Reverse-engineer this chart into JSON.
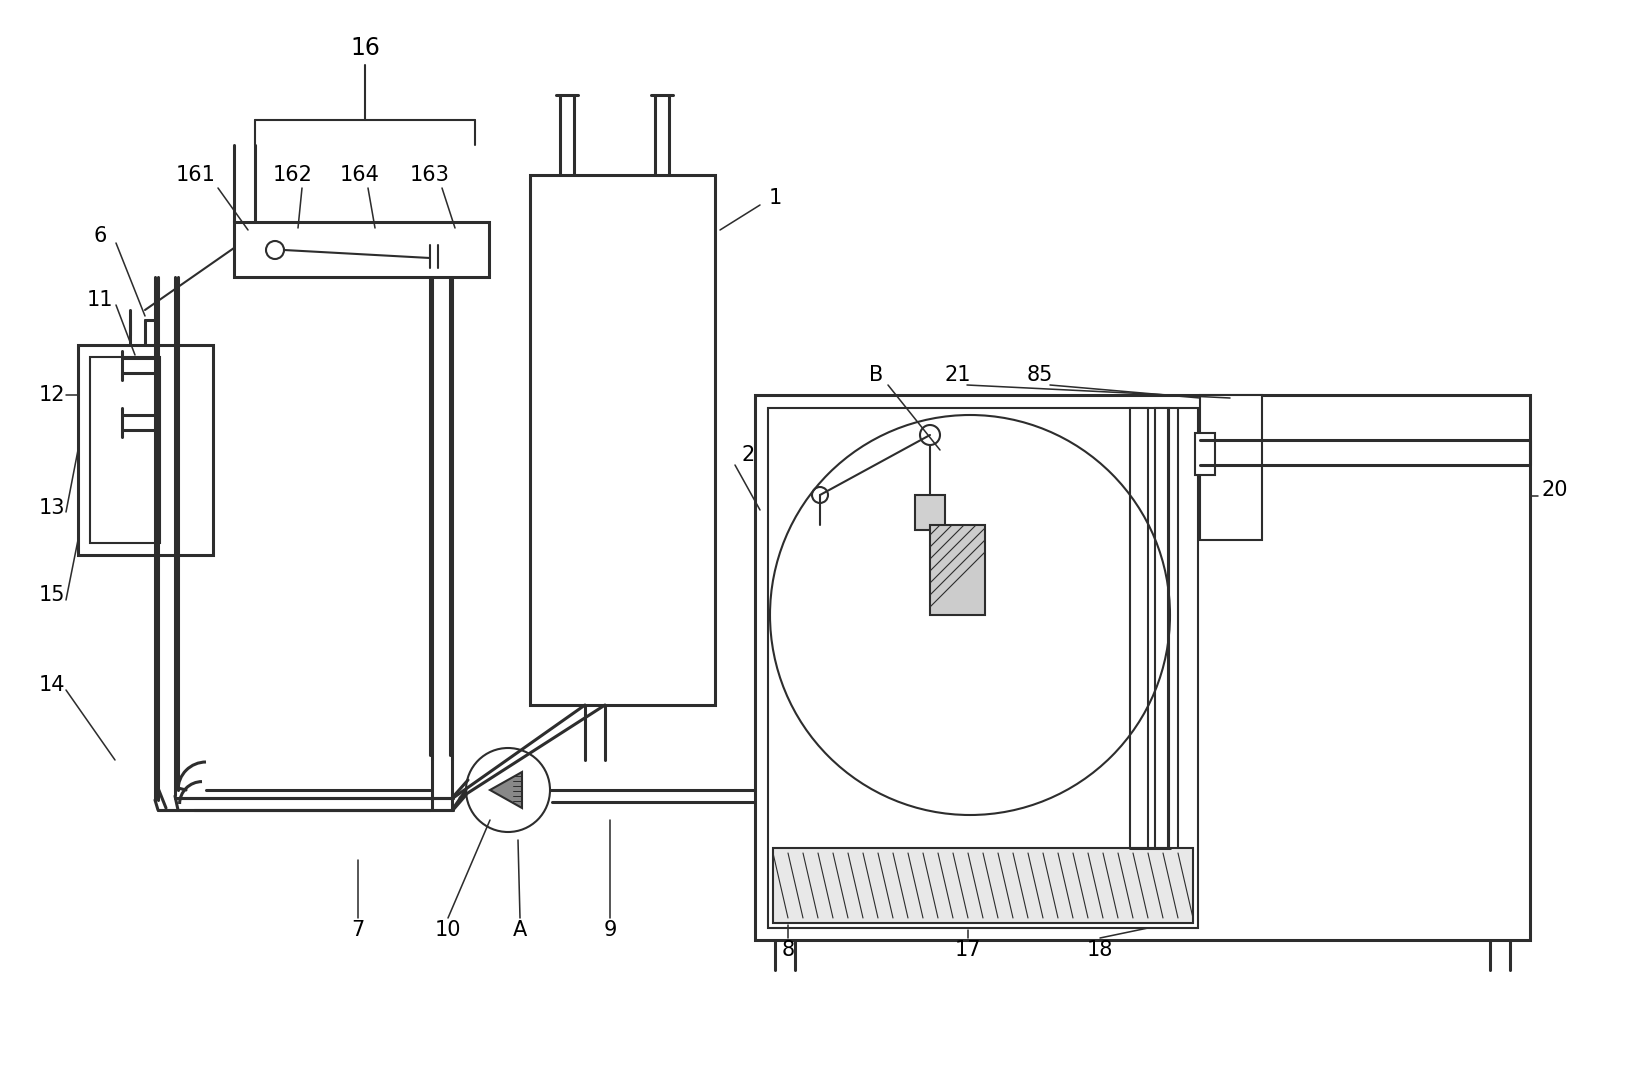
{
  "bg_color": "#ffffff",
  "lc": "#2d2d2d",
  "lw": 1.5,
  "tlw": 2.2,
  "fs": 15
}
